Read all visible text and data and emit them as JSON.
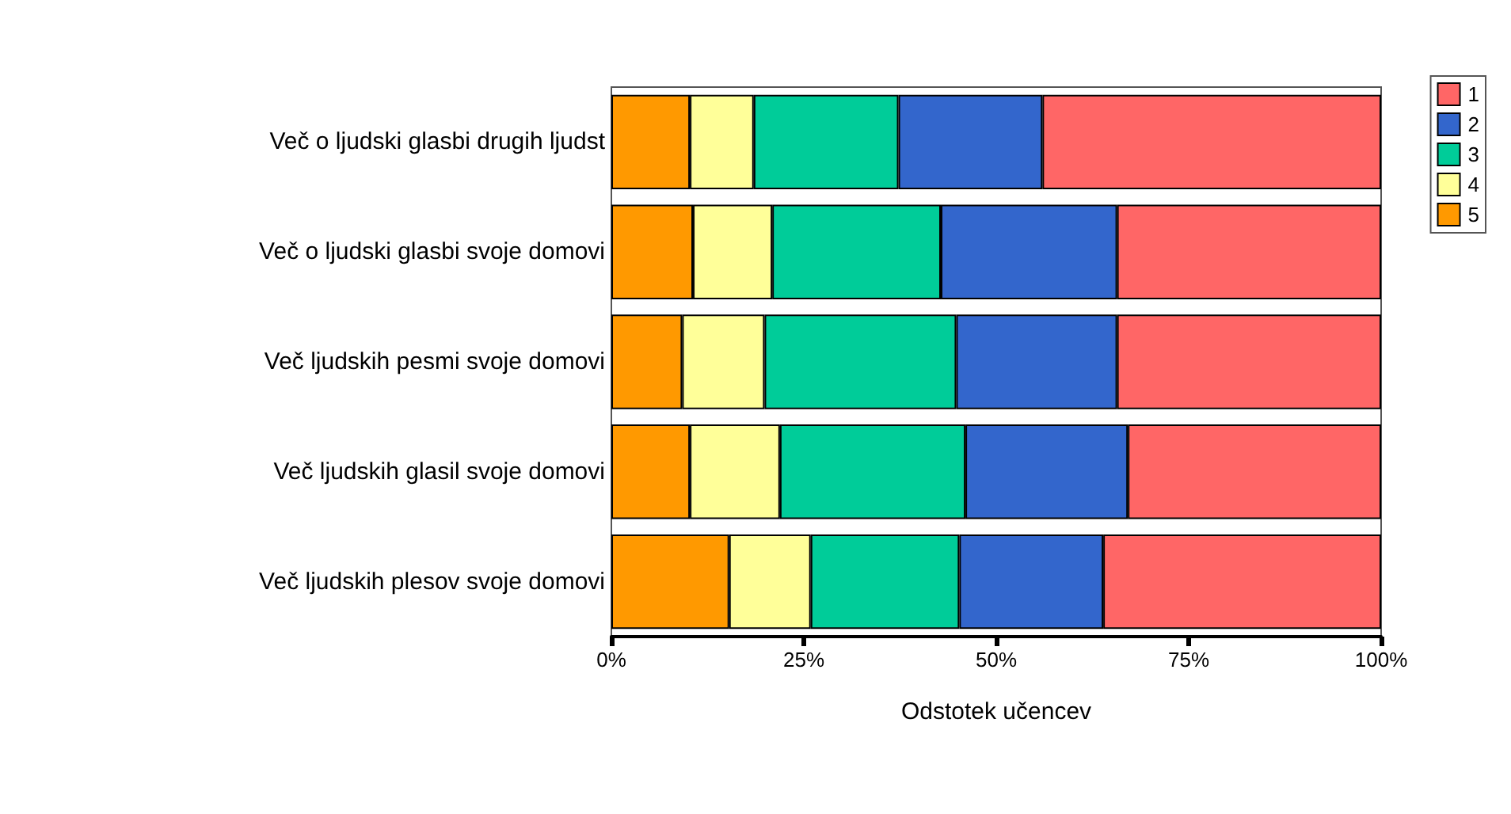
{
  "chart_data": {
    "type": "bar",
    "orientation": "horizontal",
    "stacked": true,
    "xlabel": "Odstotek učencev",
    "categories": [
      "Več o ljudski glasbi drugih ljudst",
      "Več o ljudski glasbi svoje domovi",
      "Več ljudskih pesmi svoje domovi",
      "Več ljudskih glasil svoje domovi",
      "Več ljudskih plesov svoje domovi"
    ],
    "series": [
      {
        "name": "5",
        "color": "#ff9900",
        "values": [
          10.2,
          10.6,
          9.2,
          10.2,
          15.3
        ]
      },
      {
        "name": "4",
        "color": "#ffff99",
        "values": [
          8.3,
          10.3,
          10.7,
          11.7,
          10.6
        ]
      },
      {
        "name": "3",
        "color": "#00cc99",
        "values": [
          18.8,
          21.9,
          24.9,
          24.1,
          19.3
        ]
      },
      {
        "name": "2",
        "color": "#3366cc",
        "values": [
          18.7,
          22.9,
          20.9,
          21.1,
          18.7
        ]
      },
      {
        "name": "1",
        "color": "#ff6666",
        "values": [
          44.0,
          34.3,
          34.3,
          32.9,
          36.1
        ]
      }
    ],
    "xlim": [
      0,
      100
    ],
    "xticks": [
      {
        "value": 0,
        "label": "0%"
      },
      {
        "value": 25,
        "label": "25%"
      },
      {
        "value": 50,
        "label": "50%"
      },
      {
        "value": 75,
        "label": "75%"
      },
      {
        "value": 100,
        "label": "100%"
      }
    ],
    "grid": false,
    "legend": "top right"
  }
}
